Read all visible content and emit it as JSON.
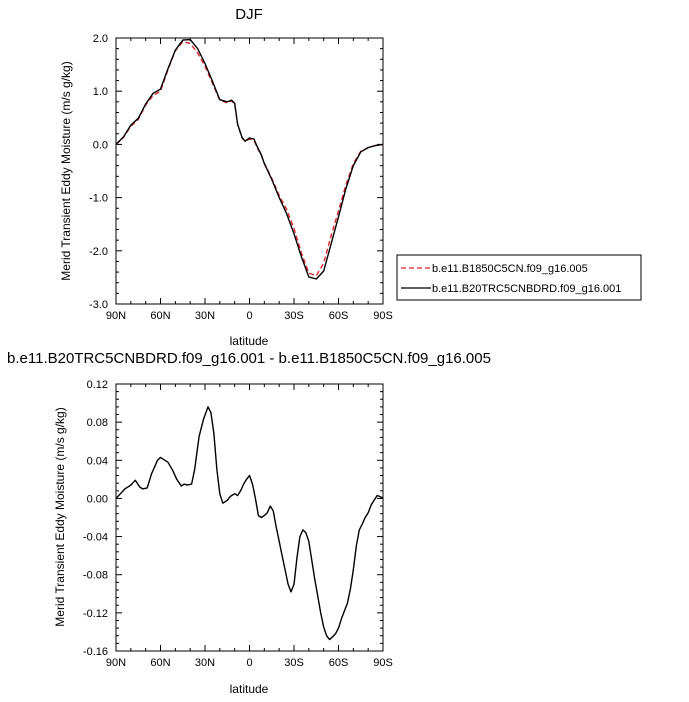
{
  "chart_data": [
    {
      "type": "line",
      "title": "DJF",
      "xlabel": "latitude",
      "ylabel": "Merid Transient Eddy Moisture (m/s g/kg)",
      "xlim": [
        90,
        -90
      ],
      "ylim": [
        -3.0,
        2.0
      ],
      "x_ticks": [
        90,
        60,
        30,
        0,
        -30,
        -60,
        -90
      ],
      "x_tick_labels": [
        "90N",
        "60N",
        "30N",
        "0",
        "30S",
        "60S",
        "90S"
      ],
      "y_ticks": [
        2.0,
        1.0,
        0.0,
        -1.0,
        -2.0,
        -3.0
      ],
      "y_tick_labels": [
        "2.0",
        "1.0",
        "0.0",
        "-1.0",
        "-2.0",
        "-3.0"
      ],
      "legend": "right",
      "series": [
        {
          "name": "b.e11.B1850C5CN.f09_g16.005",
          "color": "#e0262b",
          "dash": "dashed",
          "x": [
            90,
            85,
            80,
            75,
            70,
            65,
            60,
            55,
            50,
            45,
            40,
            35,
            30,
            25,
            20,
            15,
            12,
            10,
            8,
            5,
            3,
            0,
            -3,
            -5,
            -8,
            -10,
            -15,
            -20,
            -25,
            -30,
            -35,
            -40,
            -45,
            -50,
            -55,
            -60,
            -65,
            -70,
            -75,
            -80,
            -85,
            -90
          ],
          "y": [
            0.0,
            0.13,
            0.34,
            0.47,
            0.74,
            0.92,
            1.0,
            1.4,
            1.76,
            1.93,
            1.9,
            1.72,
            1.47,
            1.15,
            0.83,
            0.78,
            0.82,
            0.76,
            0.38,
            0.12,
            0.06,
            0.1,
            0.08,
            -0.05,
            -0.21,
            -0.35,
            -0.64,
            -0.96,
            -1.22,
            -1.58,
            -2.04,
            -2.42,
            -2.47,
            -2.23,
            -1.72,
            -1.25,
            -0.76,
            -0.36,
            -0.13,
            -0.06,
            -0.02,
            0.0
          ]
        },
        {
          "name": "b.e11.B20TRC5CNBDRD.f09_g16.001",
          "color": "#000000",
          "dash": "solid",
          "x": [
            90,
            85,
            80,
            75,
            70,
            65,
            60,
            55,
            50,
            45,
            40,
            35,
            30,
            25,
            20,
            15,
            12,
            10,
            8,
            5,
            3,
            0,
            -3,
            -5,
            -8,
            -10,
            -15,
            -20,
            -25,
            -30,
            -35,
            -40,
            -45,
            -50,
            -55,
            -60,
            -65,
            -70,
            -75,
            -80,
            -85,
            -90
          ],
          "y": [
            0.0,
            0.14,
            0.36,
            0.49,
            0.76,
            0.96,
            1.04,
            1.42,
            1.77,
            1.96,
            1.97,
            1.8,
            1.52,
            1.19,
            0.84,
            0.8,
            0.83,
            0.77,
            0.38,
            0.13,
            0.06,
            0.12,
            0.1,
            -0.03,
            -0.2,
            -0.36,
            -0.66,
            -1.0,
            -1.3,
            -1.68,
            -2.11,
            -2.49,
            -2.53,
            -2.38,
            -1.87,
            -1.36,
            -0.83,
            -0.4,
            -0.14,
            -0.06,
            -0.02,
            0.0
          ]
        }
      ]
    },
    {
      "type": "line",
      "title": "b.e11.B20TRC5CNBDRD.f09_g16.001 - b.e11.B1850C5CN.f09_g16.005",
      "xlabel": "latitude",
      "ylabel": "Merid Transient Eddy Moisture (m/s g/kg)",
      "xlim": [
        90,
        -90
      ],
      "ylim": [
        -0.16,
        0.12
      ],
      "x_ticks": [
        90,
        60,
        30,
        0,
        -30,
        -60,
        -90
      ],
      "x_tick_labels": [
        "90N",
        "60N",
        "30N",
        "0",
        "30S",
        "60S",
        "90S"
      ],
      "y_ticks": [
        0.12,
        0.08,
        0.04,
        0.0,
        -0.04,
        -0.08,
        -0.12,
        -0.16
      ],
      "y_tick_labels": [
        "0.12",
        "0.08",
        "0.04",
        "0.00",
        "-0.04",
        "-0.08",
        "-0.12",
        "-0.16"
      ],
      "series": [
        {
          "color": "#000000",
          "dash": "solid",
          "x": [
            90,
            87,
            84,
            80,
            77,
            74,
            72,
            69,
            66,
            62,
            60,
            57,
            55,
            52,
            49,
            46,
            44,
            42,
            39,
            37,
            34,
            31,
            28,
            26,
            24,
            22,
            20,
            18,
            15,
            13,
            10,
            8,
            6,
            4,
            2,
            0,
            -2,
            -4,
            -6,
            -8,
            -10,
            -12,
            -14,
            -16,
            -18,
            -20,
            -22,
            -24,
            -26,
            -28,
            -30,
            -32,
            -34,
            -36,
            -38,
            -40,
            -42,
            -44,
            -46,
            -48,
            -50,
            -52,
            -54,
            -56,
            -58,
            -60,
            -62,
            -64,
            -66,
            -68,
            -70,
            -72,
            -74,
            -76,
            -78,
            -80,
            -82,
            -84,
            -86,
            -88,
            -90
          ],
          "y": [
            0.0,
            0.005,
            0.01,
            0.014,
            0.019,
            0.012,
            0.01,
            0.011,
            0.026,
            0.04,
            0.043,
            0.04,
            0.038,
            0.03,
            0.02,
            0.013,
            0.015,
            0.014,
            0.015,
            0.03,
            0.065,
            0.083,
            0.096,
            0.09,
            0.068,
            0.03,
            0.005,
            -0.005,
            -0.002,
            0.002,
            0.005,
            0.003,
            0.008,
            0.015,
            0.02,
            0.024,
            0.015,
            0.0,
            -0.018,
            -0.02,
            -0.018,
            -0.015,
            -0.008,
            -0.013,
            -0.03,
            -0.045,
            -0.06,
            -0.075,
            -0.09,
            -0.098,
            -0.09,
            -0.062,
            -0.04,
            -0.033,
            -0.036,
            -0.045,
            -0.065,
            -0.085,
            -0.102,
            -0.12,
            -0.135,
            -0.144,
            -0.148,
            -0.145,
            -0.142,
            -0.136,
            -0.126,
            -0.118,
            -0.11,
            -0.095,
            -0.075,
            -0.05,
            -0.033,
            -0.027,
            -0.02,
            -0.015,
            -0.007,
            -0.002,
            0.003,
            0.002,
            0.0
          ]
        }
      ]
    }
  ]
}
